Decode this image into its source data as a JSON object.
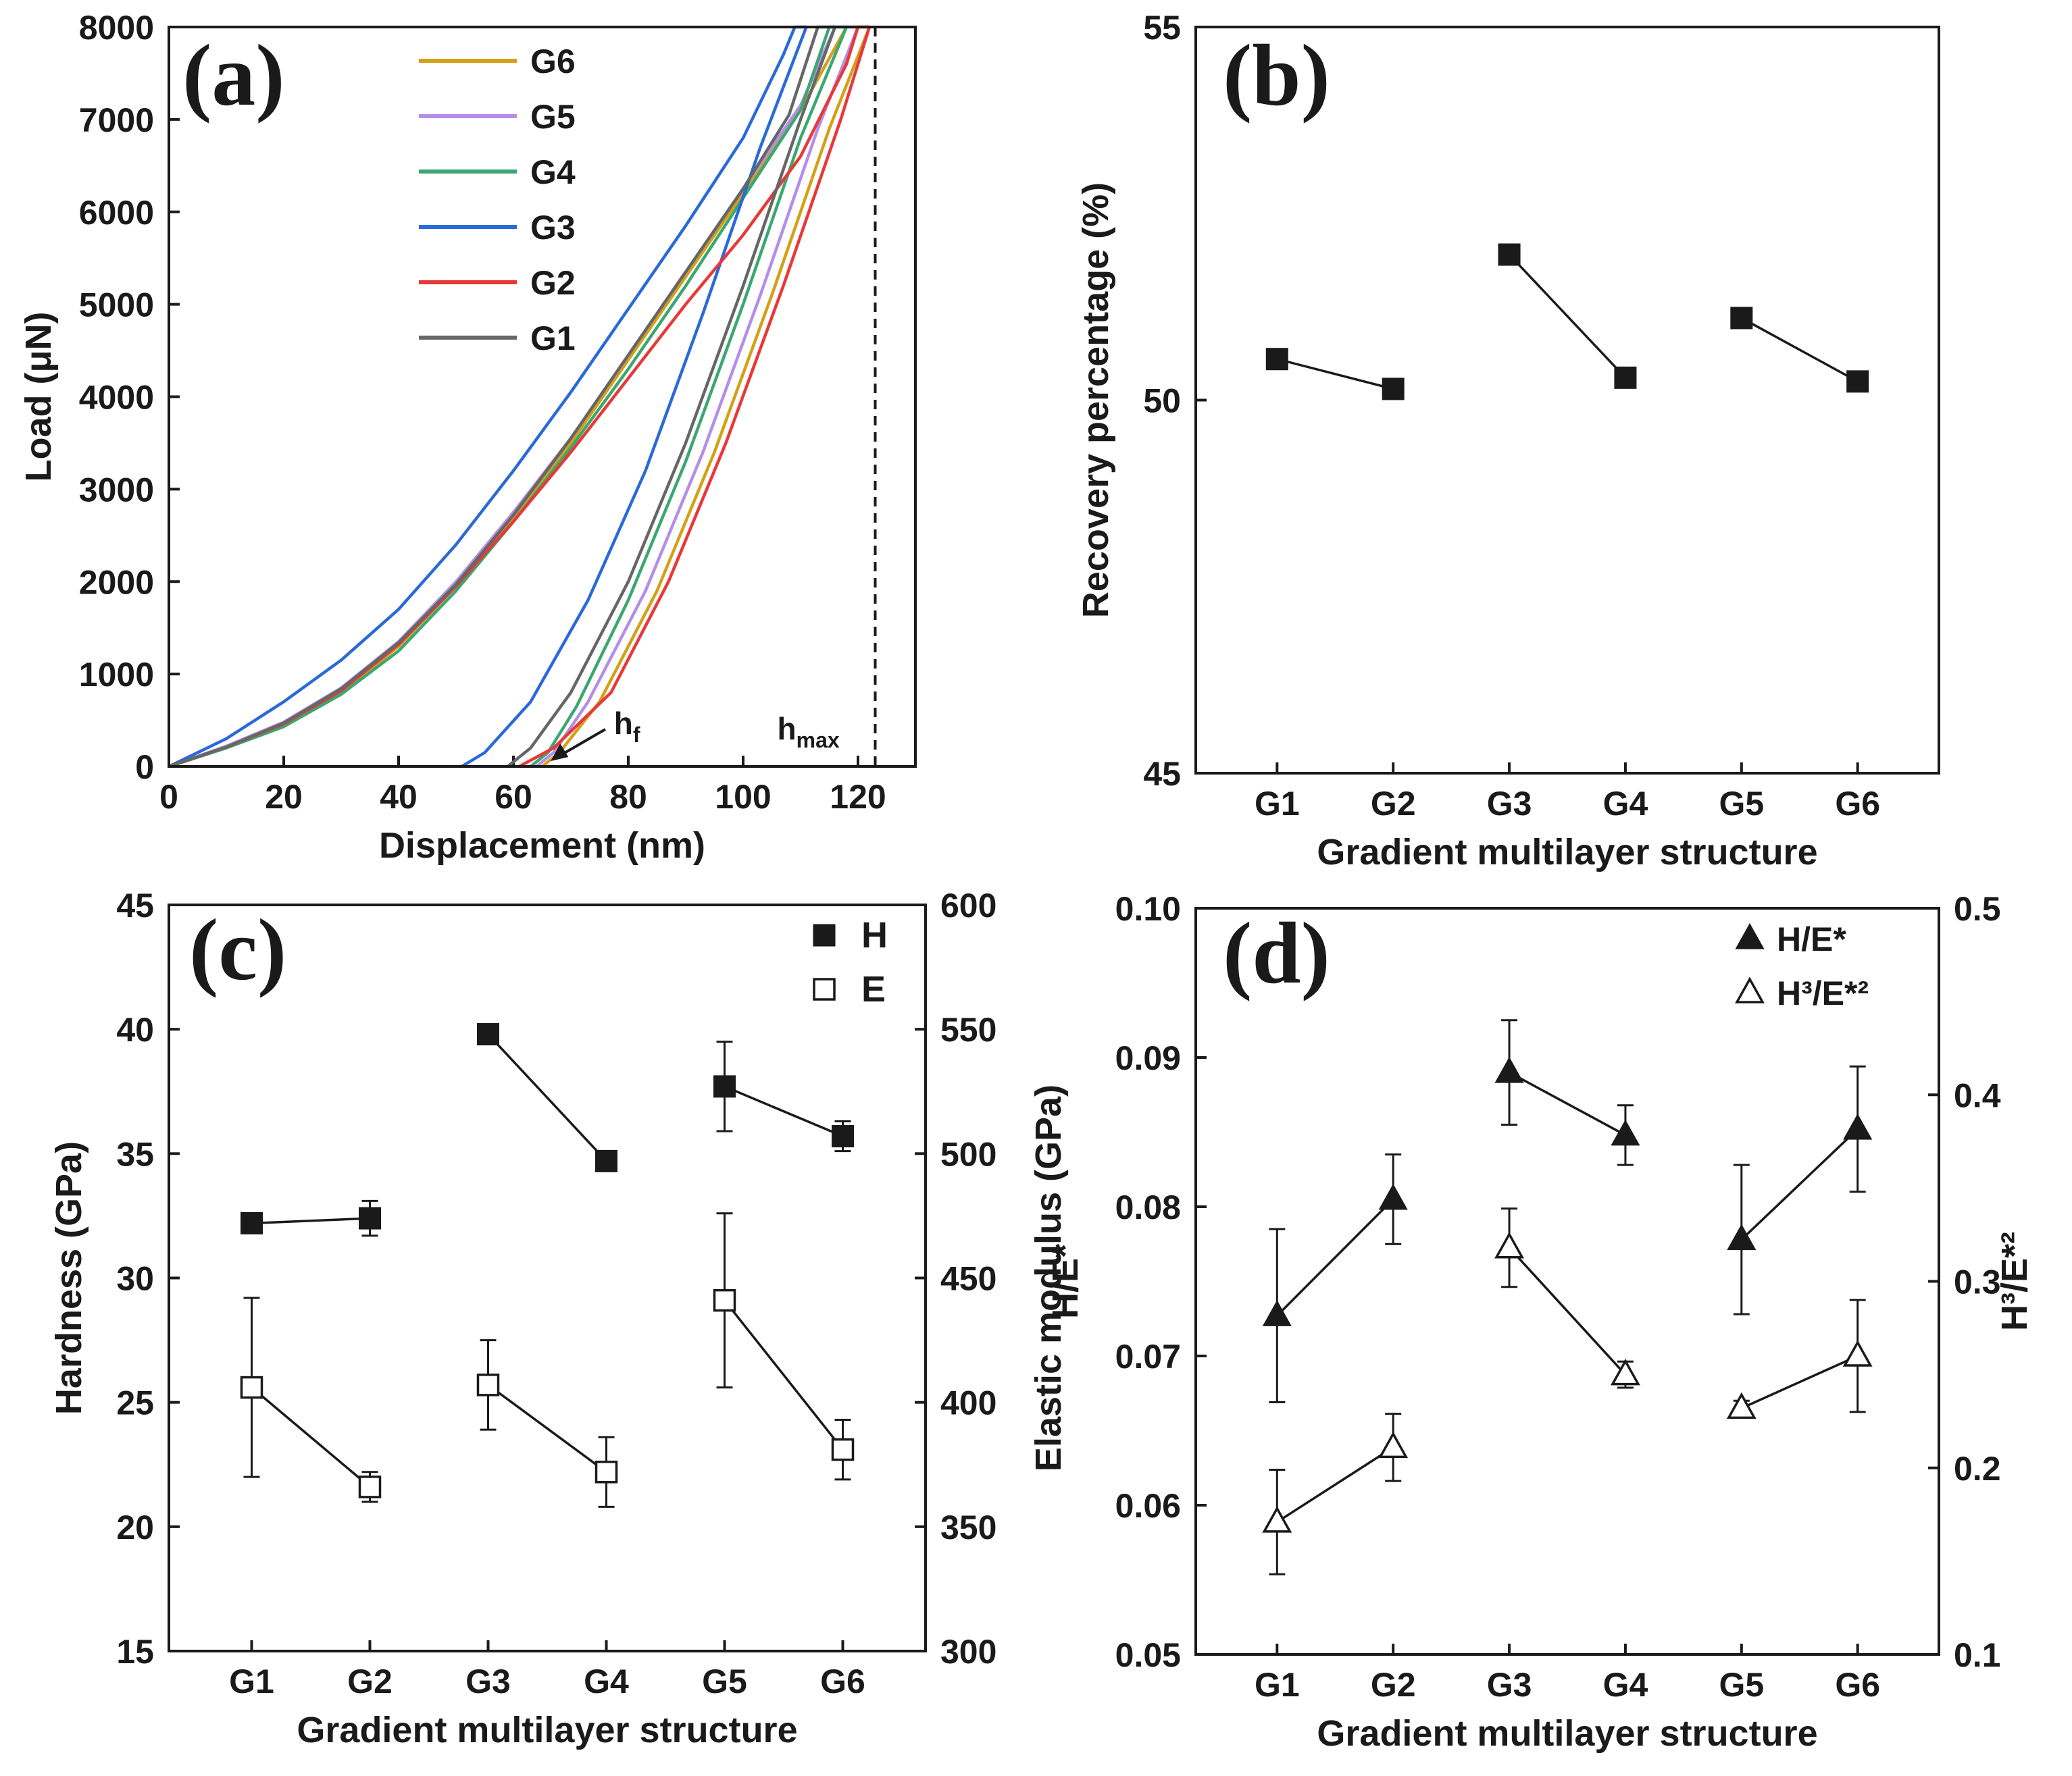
{
  "chart_data": [
    {
      "id": "a",
      "type": "line",
      "panel_label": "(a)",
      "xlabel": "Displacement (nm)",
      "ylabel": "Load (μN)",
      "xlim": [
        0,
        130
      ],
      "ylim": [
        0,
        8000
      ],
      "xticks": [
        0,
        20,
        40,
        60,
        80,
        100,
        120
      ],
      "yticks": [
        0,
        1000,
        2000,
        3000,
        4000,
        5000,
        6000,
        7000,
        8000
      ],
      "annotations": {
        "hf": "h",
        "hf_sub": "f",
        "hmax": "h",
        "hmax_sub": "max",
        "hmax_x": 123
      },
      "series": [
        {
          "name": "G6",
          "color": "#d4a017",
          "hmax": 122,
          "hf": 65,
          "load": [
            [
              0,
              0
            ],
            [
              10,
              200
            ],
            [
              20,
              450
            ],
            [
              30,
              800
            ],
            [
              40,
              1300
            ],
            [
              50,
              1950
            ],
            [
              60,
              2700
            ],
            [
              70,
              3500
            ],
            [
              80,
              4400
            ],
            [
              90,
              5300
            ],
            [
              100,
              6200
            ],
            [
              110,
              7100
            ],
            [
              118,
              8000
            ],
            [
              122,
              8000
            ]
          ],
          "unload": [
            [
              122,
              8000
            ],
            [
              115,
              6900
            ],
            [
              105,
              5100
            ],
            [
              95,
              3400
            ],
            [
              85,
              1900
            ],
            [
              75,
              700
            ],
            [
              68,
              150
            ],
            [
              65,
              0
            ]
          ]
        },
        {
          "name": "G5",
          "color": "#b48ee8",
          "hmax": 120,
          "hf": 64,
          "load": [
            [
              0,
              0
            ],
            [
              10,
              220
            ],
            [
              20,
              480
            ],
            [
              30,
              850
            ],
            [
              40,
              1350
            ],
            [
              50,
              2000
            ],
            [
              60,
              2750
            ],
            [
              70,
              3550
            ],
            [
              80,
              4450
            ],
            [
              90,
              5350
            ],
            [
              100,
              6250
            ],
            [
              110,
              7150
            ],
            [
              116,
              8000
            ],
            [
              120,
              8000
            ]
          ],
          "unload": [
            [
              120,
              8000
            ],
            [
              113,
              6900
            ],
            [
              103,
              5100
            ],
            [
              93,
              3400
            ],
            [
              83,
              1900
            ],
            [
              73,
              700
            ],
            [
              67,
              150
            ],
            [
              64,
              0
            ]
          ]
        },
        {
          "name": "G4",
          "color": "#3aa870",
          "hmax": 118,
          "hf": 63,
          "load": [
            [
              0,
              0
            ],
            [
              10,
              200
            ],
            [
              20,
              430
            ],
            [
              30,
              780
            ],
            [
              40,
              1250
            ],
            [
              50,
              1900
            ],
            [
              60,
              2650
            ],
            [
              70,
              3450
            ],
            [
              80,
              4300
            ],
            [
              90,
              5200
            ],
            [
              100,
              6150
            ],
            [
              110,
              7100
            ],
            [
              115,
              8000
            ],
            [
              118,
              8000
            ]
          ],
          "unload": [
            [
              118,
              8000
            ],
            [
              110,
              6800
            ],
            [
              100,
              5000
            ],
            [
              90,
              3300
            ],
            [
              80,
              1800
            ],
            [
              71,
              650
            ],
            [
              66,
              150
            ],
            [
              63,
              0
            ]
          ]
        },
        {
          "name": "G3",
          "color": "#2a6ad8",
          "hmax": 111,
          "hf": 51,
          "load": [
            [
              0,
              0
            ],
            [
              10,
              300
            ],
            [
              20,
              700
            ],
            [
              30,
              1150
            ],
            [
              40,
              1700
            ],
            [
              50,
              2400
            ],
            [
              60,
              3200
            ],
            [
              70,
              4050
            ],
            [
              80,
              4950
            ],
            [
              90,
              5850
            ],
            [
              100,
              6800
            ],
            [
              107,
              7700
            ],
            [
              109,
              8000
            ],
            [
              111,
              8000
            ]
          ],
          "unload": [
            [
              111,
              8000
            ],
            [
              103,
              6700
            ],
            [
              93,
              4900
            ],
            [
              83,
              3200
            ],
            [
              73,
              1800
            ],
            [
              63,
              700
            ],
            [
              55,
              150
            ],
            [
              51,
              0
            ]
          ]
        },
        {
          "name": "G2",
          "color": "#e83838",
          "hmax": 122,
          "hf": 61,
          "load": [
            [
              0,
              0
            ],
            [
              10,
              210
            ],
            [
              20,
              460
            ],
            [
              30,
              820
            ],
            [
              40,
              1320
            ],
            [
              50,
              1950
            ],
            [
              60,
              2650
            ],
            [
              70,
              3400
            ],
            [
              80,
              4200
            ],
            [
              90,
              5000
            ],
            [
              100,
              5750
            ],
            [
              110,
              6600
            ],
            [
              118,
              7600
            ],
            [
              120,
              8000
            ],
            [
              122,
              8000
            ]
          ],
          "unload": [
            [
              122,
              8000
            ],
            [
              117,
              7000
            ],
            [
              107,
              5200
            ],
            [
              97,
              3500
            ],
            [
              87,
              2000
            ],
            [
              77,
              800
            ],
            [
              67,
              200
            ],
            [
              61,
              0
            ]
          ]
        },
        {
          "name": "G1",
          "color": "#666666",
          "hmax": 116,
          "hf": 59,
          "load": [
            [
              0,
              0
            ],
            [
              10,
              210
            ],
            [
              20,
              470
            ],
            [
              30,
              840
            ],
            [
              40,
              1340
            ],
            [
              50,
              1970
            ],
            [
              60,
              2720
            ],
            [
              70,
              3550
            ],
            [
              80,
              4450
            ],
            [
              90,
              5350
            ],
            [
              100,
              6250
            ],
            [
              108,
              7050
            ],
            [
              113,
              8000
            ],
            [
              116,
              8000
            ]
          ],
          "unload": [
            [
              116,
              8000
            ],
            [
              110,
              7000
            ],
            [
              100,
              5200
            ],
            [
              90,
              3500
            ],
            [
              80,
              2000
            ],
            [
              70,
              800
            ],
            [
              63,
              200
            ],
            [
              59,
              0
            ]
          ]
        }
      ]
    },
    {
      "id": "b",
      "type": "line",
      "panel_label": "(b)",
      "xlabel": "Gradient multilayer structure",
      "ylabel": "Recovery percentage (%)",
      "categories": [
        "G1",
        "G2",
        "G3",
        "G4",
        "G5",
        "G6"
      ],
      "ylim": [
        45,
        55
      ],
      "yticks": [
        45,
        50,
        55
      ],
      "series": [
        {
          "name": "Recovery",
          "values": [
            50.55,
            50.15,
            51.95,
            50.3,
            51.1,
            50.25
          ],
          "segments": [
            [
              0,
              1
            ],
            [
              2,
              3
            ],
            [
              4,
              5
            ]
          ]
        }
      ]
    },
    {
      "id": "c",
      "type": "line",
      "panel_label": "(c)",
      "xlabel": "Gradient multilayer structure",
      "ylabel": "Hardness (GPa)",
      "ylabel_right": "Elastic modulus (GPa)",
      "categories": [
        "G1",
        "G2",
        "G3",
        "G4",
        "G5",
        "G6"
      ],
      "ylim": [
        15,
        45
      ],
      "yticks": [
        15,
        20,
        25,
        30,
        35,
        40,
        45
      ],
      "ylim_right": [
        300,
        600
      ],
      "yticks_right": [
        300,
        350,
        400,
        450,
        500,
        550,
        600
      ],
      "legend": [
        "H",
        "E"
      ],
      "series": [
        {
          "name": "H",
          "axis": "left",
          "marker": "square-filled",
          "values": [
            32.2,
            32.4,
            39.8,
            34.7,
            37.7,
            35.7
          ],
          "errors": [
            0.3,
            0.7,
            0.3,
            0.3,
            1.8,
            0.6
          ],
          "segments": [
            [
              0,
              1
            ],
            [
              2,
              3
            ],
            [
              4,
              5
            ]
          ]
        },
        {
          "name": "E",
          "axis": "right",
          "marker": "square-open",
          "values": [
            406,
            366,
            407,
            372,
            441,
            381
          ],
          "errors": [
            36,
            6,
            18,
            14,
            35,
            12
          ],
          "segments": [
            [
              0,
              1
            ],
            [
              2,
              3
            ],
            [
              4,
              5
            ]
          ]
        }
      ]
    },
    {
      "id": "d",
      "type": "line",
      "panel_label": "(d)",
      "xlabel": "Gradient multilayer structure",
      "ylabel": "H/E*",
      "ylabel_right": "H³/E*²",
      "categories": [
        "G1",
        "G2",
        "G3",
        "G4",
        "G5",
        "G6"
      ],
      "ylim": [
        0.05,
        0.1
      ],
      "yticks": [
        "0.05",
        "0.06",
        "0.07",
        "0.08",
        "0.09",
        "0.10"
      ],
      "ylim_right": [
        0.1,
        0.5
      ],
      "yticks_right": [
        "0.1",
        "0.2",
        "0.3",
        "0.4",
        "0.5"
      ],
      "legend": [
        "H/E*",
        "H³/E*²"
      ],
      "series": [
        {
          "name": "H/E*",
          "axis": "left",
          "marker": "triangle-filled",
          "values": [
            0.0727,
            0.0805,
            0.089,
            0.0848,
            0.0778,
            0.0852
          ],
          "errors": [
            0.0058,
            0.003,
            0.0035,
            0.002,
            0.005,
            0.0042
          ],
          "segments": [
            [
              0,
              1
            ],
            [
              2,
              3
            ],
            [
              4,
              5
            ]
          ]
        },
        {
          "name": "H³/E*²",
          "axis": "right",
          "marker": "triangle-open",
          "values": [
            0.171,
            0.211,
            0.318,
            0.25,
            0.232,
            0.26
          ],
          "errors": [
            0.028,
            0.018,
            0.021,
            0.007,
            0.004,
            0.03
          ],
          "segments": [
            [
              0,
              1
            ],
            [
              2,
              3
            ],
            [
              4,
              5
            ]
          ]
        }
      ]
    }
  ]
}
